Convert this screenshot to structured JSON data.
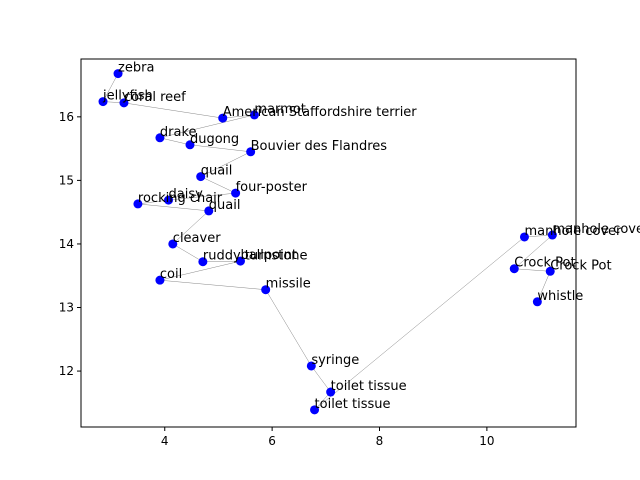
{
  "chart_data": {
    "type": "scatter",
    "labels": [
      "zebra",
      "jellyfish",
      "coral reef",
      "American Staffordshire terrier",
      "marmot",
      "drake",
      "dugong",
      "Bouvier des Flandres",
      "quail",
      "four-poster",
      "daisy",
      "rocking chair",
      "quail",
      "cleaver",
      "ruddy turnstone",
      "ballpoint",
      "coil",
      "missile",
      "syringe",
      "toilet tissue",
      "toilet tissue",
      "manhole cover",
      "manhole cover",
      "Crock Pot",
      "Crock Pot",
      "whistle"
    ],
    "x": [
      3.13,
      2.85,
      3.24,
      5.08,
      5.67,
      3.91,
      4.47,
      5.6,
      4.67,
      5.32,
      4.07,
      3.5,
      4.82,
      4.15,
      4.71,
      5.41,
      3.91,
      5.88,
      6.73,
      7.09,
      6.79,
      10.7,
      11.22,
      10.51,
      11.18,
      10.94
    ],
    "values": [
      16.68,
      16.24,
      16.22,
      15.98,
      16.03,
      15.67,
      15.56,
      15.45,
      15.06,
      14.8,
      14.69,
      14.63,
      14.52,
      14.0,
      13.72,
      13.73,
      13.43,
      13.28,
      12.08,
      11.67,
      11.39,
      14.11,
      14.14,
      13.61,
      13.57,
      13.09
    ],
    "color": "#0000ff",
    "line_color": "#888888",
    "xlim": [
      2.44,
      11.66
    ],
    "ylim": [
      11.12,
      16.91
    ],
    "xticks": [
      4,
      6,
      8,
      10
    ],
    "yticks": [
      12,
      13,
      14,
      15,
      16
    ]
  }
}
